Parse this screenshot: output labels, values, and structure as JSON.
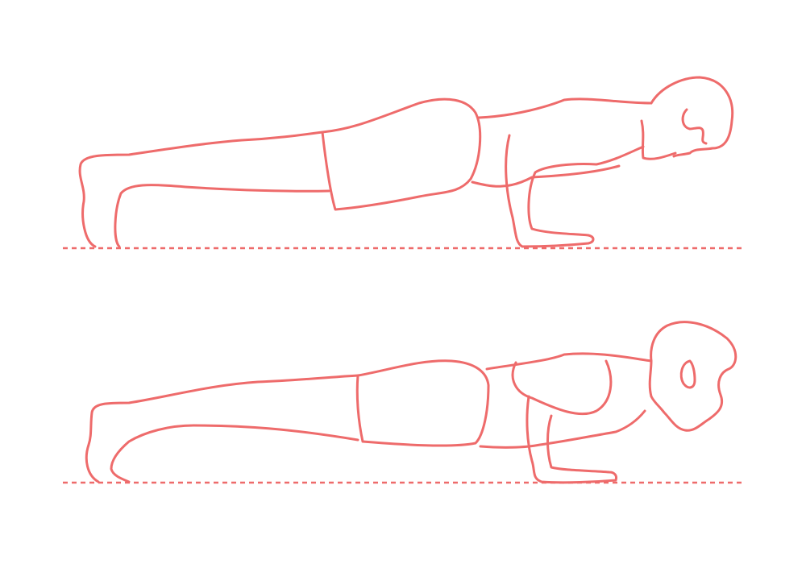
{
  "stroke_color": "#ee6b6b",
  "background_color": "#ffffff",
  "figures": [
    {
      "pose": "plank-arms-extended"
    },
    {
      "pose": "chaturanga-low-plank"
    }
  ]
}
